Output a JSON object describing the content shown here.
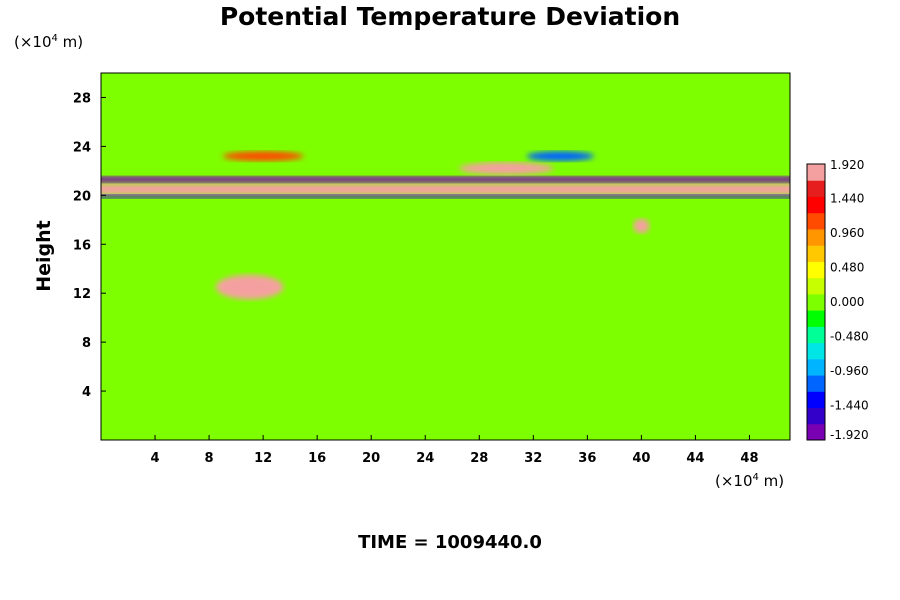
{
  "chart_data": {
    "type": "heatmap",
    "title": "Potential Temperature Deviation",
    "xlabel": "",
    "ylabel": "Height",
    "x_unit": {
      "prefix": "(×10",
      "exp": "4",
      "suffix": " m)"
    },
    "y_unit": {
      "prefix": "(×10",
      "exp": "4",
      "suffix": " m)"
    },
    "xlim": [
      0,
      51
    ],
    "ylim": [
      0,
      30
    ],
    "x_ticks": [
      "4",
      "8",
      "12",
      "16",
      "20",
      "24",
      "28",
      "32",
      "36",
      "40",
      "44",
      "48"
    ],
    "y_ticks": [
      "4",
      "8",
      "12",
      "16",
      "20",
      "24",
      "28"
    ],
    "colorbar": {
      "range": [
        -1.92,
        1.92
      ],
      "tick_labels": [
        "1.920",
        "1.440",
        "0.960",
        "0.480",
        "0.000",
        "-0.480",
        "-0.960",
        "-1.440",
        "-1.920"
      ],
      "colors": [
        "#7a00b4",
        "#3200c8",
        "#0000ff",
        "#0064ff",
        "#00b4ff",
        "#00e6e6",
        "#00ff96",
        "#00ff00",
        "#7dff00",
        "#c8ff00",
        "#ffff00",
        "#ffc800",
        "#ff9600",
        "#ff4b00",
        "#ff0000",
        "#e61e1e",
        "#f5a0a0"
      ]
    },
    "features": [
      {
        "kind": "band",
        "y": 20.5,
        "thickness": 0.9,
        "value": 1.92
      },
      {
        "kind": "band",
        "y": 21.3,
        "thickness": 0.5,
        "value": -1.92
      },
      {
        "kind": "band",
        "y": 19.9,
        "thickness": 0.3,
        "value": -1.6
      },
      {
        "kind": "blob",
        "x": 11,
        "y": 12.5,
        "rx": 2.5,
        "ry": 1.0,
        "value": 1.8
      },
      {
        "kind": "blob",
        "x": 40,
        "y": 17.5,
        "rx": 0.6,
        "ry": 0.6,
        "value": 1.8
      },
      {
        "kind": "blob",
        "x": 30,
        "y": 22.2,
        "rx": 3.5,
        "ry": 0.5,
        "value": 1.92
      },
      {
        "kind": "blob",
        "x": 34,
        "y": 23.2,
        "rx": 2.5,
        "ry": 0.4,
        "value": -1.2
      },
      {
        "kind": "blob",
        "x": 12,
        "y": 23.2,
        "rx": 3.0,
        "ry": 0.4,
        "value": 1.2
      }
    ]
  },
  "footer": {
    "label": "TIME = 1009440.0"
  }
}
